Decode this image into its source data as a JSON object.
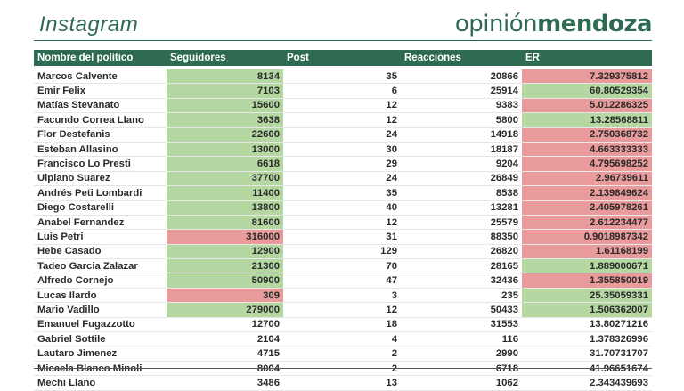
{
  "header": {
    "title": "Instagram",
    "brand_light": "opinión",
    "brand_bold": "mendoza"
  },
  "table": {
    "columns": [
      "Nombre del político",
      "Seguidores",
      "Post",
      "Reacciones",
      "ER"
    ],
    "rows": [
      {
        "name": "Marcos Calvente",
        "seguidores": "8134",
        "post": "35",
        "reacciones": "20866",
        "er": "7.329375812",
        "seg_color": "green",
        "er_color": "red"
      },
      {
        "name": "Emir Felix",
        "seguidores": "7103",
        "post": "6",
        "reacciones": "25914",
        "er": "60.80529354",
        "seg_color": "green",
        "er_color": "green"
      },
      {
        "name": "Matías Stevanato",
        "seguidores": "15600",
        "post": "12",
        "reacciones": "9383",
        "er": "5.012286325",
        "seg_color": "green",
        "er_color": "red"
      },
      {
        "name": "Facundo Correa Llano",
        "seguidores": "3638",
        "post": "12",
        "reacciones": "5800",
        "er": "13.28568811",
        "seg_color": "green",
        "er_color": "green"
      },
      {
        "name": "Flor Destefanis",
        "seguidores": "22600",
        "post": "24",
        "reacciones": "14918",
        "er": "2.750368732",
        "seg_color": "green",
        "er_color": "red"
      },
      {
        "name": "Esteban Allasino",
        "seguidores": "13000",
        "post": "30",
        "reacciones": "18187",
        "er": "4.663333333",
        "seg_color": "green",
        "er_color": "red"
      },
      {
        "name": "Francisco Lo Presti",
        "seguidores": "6618",
        "post": "29",
        "reacciones": "9204",
        "er": "4.795698252",
        "seg_color": "green",
        "er_color": "red"
      },
      {
        "name": "Ulpiano Suarez",
        "seguidores": "37700",
        "post": "24",
        "reacciones": "26849",
        "er": "2.96739611",
        "seg_color": "green",
        "er_color": "red"
      },
      {
        "name": "Andrés Peti Lombardi",
        "seguidores": "11400",
        "post": "35",
        "reacciones": "8538",
        "er": "2.139849624",
        "seg_color": "green",
        "er_color": "red"
      },
      {
        "name": "Diego Costarelli",
        "seguidores": "13800",
        "post": "40",
        "reacciones": "13281",
        "er": "2.405978261",
        "seg_color": "green",
        "er_color": "red"
      },
      {
        "name": "Anabel Fernandez",
        "seguidores": "81600",
        "post": "12",
        "reacciones": "25579",
        "er": "2.612234477",
        "seg_color": "green",
        "er_color": "red"
      },
      {
        "name": "Luis Petri",
        "seguidores": "316000",
        "post": "31",
        "reacciones": "88350",
        "er": "0.9018987342",
        "seg_color": "red",
        "er_color": "red"
      },
      {
        "name": "Hebe Casado",
        "seguidores": "12900",
        "post": "129",
        "reacciones": "26820",
        "er": "1.61168199",
        "seg_color": "green",
        "er_color": "red"
      },
      {
        "name": "Tadeo Garcia Zalazar",
        "seguidores": "21300",
        "post": "70",
        "reacciones": "28165",
        "er": "1.889000671",
        "seg_color": "green",
        "er_color": "green"
      },
      {
        "name": "Alfredo Cornejo",
        "seguidores": "50900",
        "post": "47",
        "reacciones": "32436",
        "er": "1.355850019",
        "seg_color": "green",
        "er_color": "red"
      },
      {
        "name": "Lucas Ilardo",
        "seguidores": "309",
        "post": "3",
        "reacciones": "235",
        "er": "25.35059331",
        "seg_color": "red",
        "er_color": "green"
      },
      {
        "name": "Mario Vadillo",
        "seguidores": "279000",
        "post": "12",
        "reacciones": "50433",
        "er": "1.506362007",
        "seg_color": "green",
        "er_color": "green"
      },
      {
        "name": "Emanuel Fugazzotto",
        "seguidores": "12700",
        "post": "18",
        "reacciones": "31553",
        "er": "13.80271216",
        "seg_color": "none",
        "er_color": "none"
      },
      {
        "name": "Gabriel Sottile",
        "seguidores": "2104",
        "post": "4",
        "reacciones": "116",
        "er": "1.378326996",
        "seg_color": "none",
        "er_color": "none"
      },
      {
        "name": "Lautaro Jimenez",
        "seguidores": "4715",
        "post": "2",
        "reacciones": "2990",
        "er": "31.70731707",
        "seg_color": "none",
        "er_color": "none"
      },
      {
        "name": "Micaela Blanco Minoli",
        "seguidores": "8004",
        "post": "2",
        "reacciones": "6718",
        "er": "41.96651674",
        "seg_color": "none",
        "er_color": "none"
      },
      {
        "name": "Mechi Llano",
        "seguidores": "3486",
        "post": "13",
        "reacciones": "1062",
        "er": "2.343439693",
        "seg_color": "none",
        "er_color": "none"
      }
    ]
  },
  "colors": {
    "brand": "#2f6b52",
    "green": "#b5d8a3",
    "red": "#e99a9a"
  }
}
